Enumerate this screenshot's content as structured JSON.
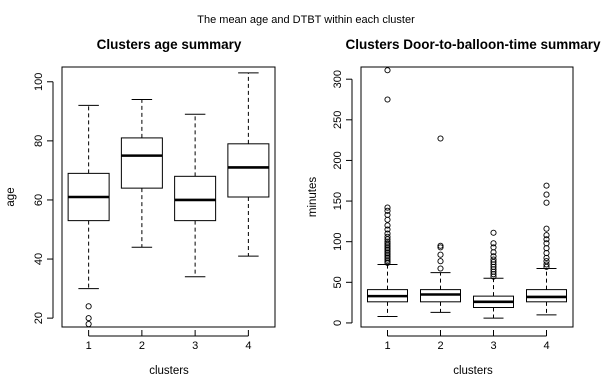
{
  "suptitle": "The mean age and DTBT within each cluster",
  "chart_data": [
    {
      "type": "boxplot",
      "title": "Clusters age summary",
      "xlabel": "clusters",
      "ylabel": "age",
      "categories": [
        "1",
        "2",
        "3",
        "4"
      ],
      "ylim": [
        17,
        105
      ],
      "yticks": [
        20,
        40,
        60,
        80,
        100
      ],
      "grid": false,
      "boxes": [
        {
          "category": "1",
          "whisker_low": 30,
          "q1": 53,
          "median": 61,
          "q3": 69,
          "whisker_high": 92,
          "outliers": [
            24,
            20,
            18
          ]
        },
        {
          "category": "2",
          "whisker_low": 44,
          "q1": 64,
          "median": 75,
          "q3": 81,
          "whisker_high": 94,
          "outliers": []
        },
        {
          "category": "3",
          "whisker_low": 34,
          "q1": 53,
          "median": 60,
          "q3": 68,
          "whisker_high": 89,
          "outliers": []
        },
        {
          "category": "4",
          "whisker_low": 41,
          "q1": 61,
          "median": 71,
          "q3": 79,
          "whisker_high": 103,
          "outliers": []
        }
      ]
    },
    {
      "type": "boxplot",
      "title": "Clusters Door-to-balloon-time summary",
      "xlabel": "clusters",
      "ylabel": "minutes",
      "categories": [
        "1",
        "2",
        "3",
        "4"
      ],
      "ylim": [
        -5,
        315
      ],
      "yticks": [
        0,
        50,
        100,
        150,
        200,
        250,
        300
      ],
      "grid": false,
      "boxes": [
        {
          "category": "1",
          "whisker_low": 8,
          "q1": 26,
          "median": 33,
          "q3": 41,
          "whisker_high": 72,
          "outliers": [
            74,
            76,
            78,
            80,
            82,
            84,
            86,
            88,
            90,
            92,
            94,
            96,
            98,
            100,
            103,
            106,
            110,
            115,
            120,
            127,
            133,
            138,
            142,
            275,
            311
          ]
        },
        {
          "category": "2",
          "whisker_low": 13,
          "q1": 26,
          "median": 35,
          "q3": 41,
          "whisker_high": 62,
          "outliers": [
            67,
            76,
            84,
            93,
            95,
            227
          ]
        },
        {
          "category": "3",
          "whisker_low": 6,
          "q1": 19,
          "median": 26,
          "q3": 33,
          "whisker_high": 55,
          "outliers": [
            57,
            60,
            63,
            66,
            69,
            72,
            75,
            78,
            82,
            87,
            93,
            98,
            111
          ]
        },
        {
          "category": "4",
          "whisker_low": 10,
          "q1": 26,
          "median": 32,
          "q3": 41,
          "whisker_high": 67,
          "outliers": [
            69,
            72,
            76,
            80,
            86,
            92,
            98,
            103,
            108,
            116,
            148,
            158,
            169
          ]
        }
      ]
    }
  ]
}
